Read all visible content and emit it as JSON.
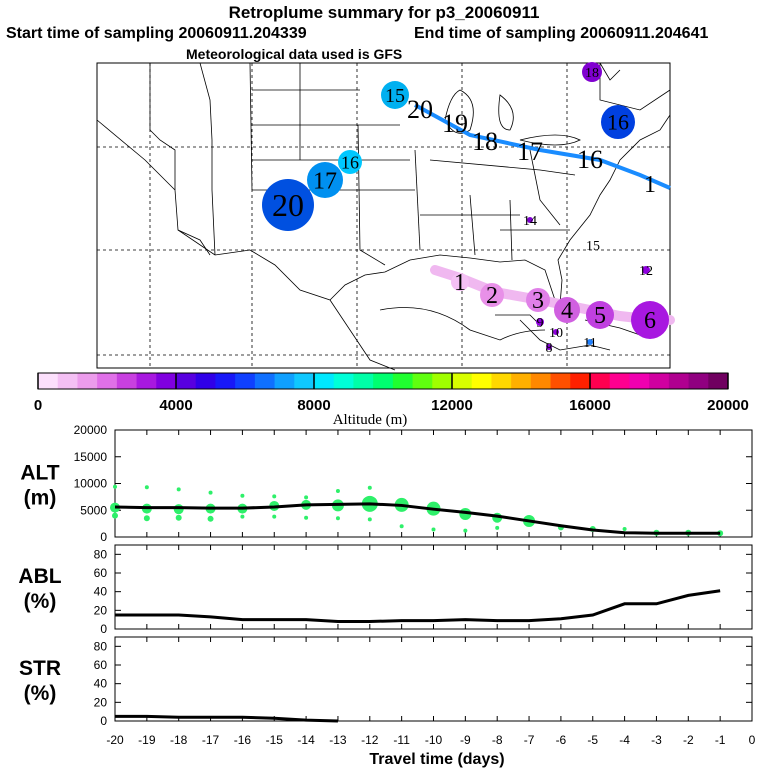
{
  "header": {
    "title": "Retroplume summary for p3_20060911",
    "start": "Start time of sampling 20060911.204339",
    "end": "End time of sampling 20060911.204641",
    "met": "Meteorological data used is GFS"
  },
  "map": {
    "high_track_labels": [
      "20",
      "19",
      "18",
      "17",
      "16",
      "1"
    ],
    "low_track_labels": [
      "1",
      "2",
      "3",
      "4",
      "5",
      "6"
    ],
    "scatter_labels": [
      {
        "label": "15",
        "color": "#00b0f0"
      },
      {
        "label": "16",
        "color": "#00c8ff"
      },
      {
        "label": "17",
        "color": "#0090f0"
      },
      {
        "label": "20",
        "color": "#0050e0"
      },
      {
        "label": "16",
        "color": "#0040e0"
      },
      {
        "label": "18",
        "color": "#8000d0"
      },
      {
        "label": "14",
        "color": "#8000d0"
      },
      {
        "label": "15",
        "color": "#8000d0"
      },
      {
        "label": "12",
        "color": "#9000e0"
      },
      {
        "label": "9",
        "color": "#9000e0"
      },
      {
        "label": "10",
        "color": "#9000e0"
      },
      {
        "label": "11",
        "color": "#2080ff"
      },
      {
        "label": "8",
        "color": "#8000d0"
      }
    ]
  },
  "colorbar": {
    "label": "Altitude (m)",
    "ticks": [
      "0",
      "4000",
      "8000",
      "12000",
      "16000",
      "20000"
    ],
    "colors": [
      "#fce0fc",
      "#f4c0f4",
      "#ec9cec",
      "#e070e8",
      "#c840e0",
      "#a818e0",
      "#8000e0",
      "#5800e0",
      "#3000e8",
      "#1818f8",
      "#1040ff",
      "#1070ff",
      "#10a0ff",
      "#10c8ff",
      "#00e8ff",
      "#00ffd8",
      "#00ffa8",
      "#00ff70",
      "#20ff30",
      "#60ff10",
      "#a0ff00",
      "#d8ff00",
      "#ffff00",
      "#ffd800",
      "#ffb000",
      "#ff8800",
      "#ff5000",
      "#ff2000",
      "#ff0050",
      "#ff0090",
      "#f000b0",
      "#d000a0",
      "#b00090",
      "#900080",
      "#700060"
    ]
  },
  "chart_data": [
    {
      "type": "line",
      "panel": "ALT",
      "ylabel": "ALT\n(m)",
      "ylabel_lines": [
        "ALT",
        "(m)"
      ],
      "ylim": [
        0,
        20000
      ],
      "yticks": [
        "0",
        "5000",
        "10000",
        "15000",
        "20000"
      ],
      "x": [
        -20,
        -19,
        -18,
        -17,
        -16,
        -15,
        -14,
        -13,
        -12,
        -11,
        -10,
        -9,
        -8,
        -7,
        -6,
        -5,
        -4,
        -3,
        -2,
        -1
      ],
      "values": [
        5600,
        5500,
        5500,
        5400,
        5400,
        5600,
        6000,
        6100,
        6200,
        5900,
        5200,
        4600,
        3900,
        3000,
        2100,
        1300,
        800,
        700,
        700,
        700
      ],
      "point_color": "#2ef06a",
      "scatter_points": [
        {
          "x": -20,
          "y": 5500,
          "r": 5
        },
        {
          "x": -20,
          "y": 9400,
          "r": 2
        },
        {
          "x": -20,
          "y": 4000,
          "r": 3
        },
        {
          "x": -19,
          "y": 5300,
          "r": 5
        },
        {
          "x": -19,
          "y": 9300,
          "r": 2
        },
        {
          "x": -19,
          "y": 3500,
          "r": 3
        },
        {
          "x": -18,
          "y": 5200,
          "r": 5
        },
        {
          "x": -18,
          "y": 8900,
          "r": 2
        },
        {
          "x": -18,
          "y": 3600,
          "r": 3
        },
        {
          "x": -17,
          "y": 5300,
          "r": 5
        },
        {
          "x": -17,
          "y": 8300,
          "r": 2
        },
        {
          "x": -17,
          "y": 3400,
          "r": 3
        },
        {
          "x": -16,
          "y": 5300,
          "r": 5
        },
        {
          "x": -16,
          "y": 7700,
          "r": 2
        },
        {
          "x": -16,
          "y": 3800,
          "r": 2
        },
        {
          "x": -15,
          "y": 5800,
          "r": 5
        },
        {
          "x": -15,
          "y": 7600,
          "r": 2
        },
        {
          "x": -15,
          "y": 3800,
          "r": 2
        },
        {
          "x": -14,
          "y": 6000,
          "r": 5
        },
        {
          "x": -14,
          "y": 7400,
          "r": 2
        },
        {
          "x": -14,
          "y": 3600,
          "r": 2
        },
        {
          "x": -13,
          "y": 5900,
          "r": 6
        },
        {
          "x": -13,
          "y": 8600,
          "r": 2
        },
        {
          "x": -13,
          "y": 3500,
          "r": 2
        },
        {
          "x": -12,
          "y": 6200,
          "r": 8
        },
        {
          "x": -12,
          "y": 9200,
          "r": 2
        },
        {
          "x": -12,
          "y": 3300,
          "r": 2
        },
        {
          "x": -11,
          "y": 6000,
          "r": 7
        },
        {
          "x": -11,
          "y": 2000,
          "r": 2
        },
        {
          "x": -10,
          "y": 5300,
          "r": 7
        },
        {
          "x": -10,
          "y": 1400,
          "r": 2
        },
        {
          "x": -9,
          "y": 4300,
          "r": 6
        },
        {
          "x": -9,
          "y": 1200,
          "r": 2
        },
        {
          "x": -8,
          "y": 3600,
          "r": 5
        },
        {
          "x": -8,
          "y": 1700,
          "r": 2
        },
        {
          "x": -7,
          "y": 3000,
          "r": 6
        },
        {
          "x": -6,
          "y": 1800,
          "r": 3
        },
        {
          "x": -5,
          "y": 1500,
          "r": 3
        },
        {
          "x": -4,
          "y": 1500,
          "r": 2
        },
        {
          "x": -3,
          "y": 800,
          "r": 3
        },
        {
          "x": -2,
          "y": 800,
          "r": 3
        },
        {
          "x": -1,
          "y": 700,
          "r": 3
        }
      ]
    },
    {
      "type": "line",
      "panel": "ABL",
      "ylabel": "ABL\n(%)",
      "ylabel_lines": [
        "ABL",
        "(%)"
      ],
      "ylim": [
        0,
        90
      ],
      "yticks": [
        "0",
        "20",
        "40",
        "60",
        "80"
      ],
      "x": [
        -20,
        -19,
        -18,
        -17,
        -16,
        -15,
        -14,
        -13,
        -12,
        -11,
        -10,
        -9,
        -8,
        -7,
        -6,
        -5,
        -4,
        -3,
        -2,
        -1
      ],
      "values": [
        15,
        15,
        15,
        13,
        10,
        10,
        10,
        8,
        8,
        9,
        9,
        10,
        9,
        9,
        11,
        15,
        27,
        27,
        36,
        41
      ]
    },
    {
      "type": "line",
      "panel": "STR",
      "ylabel": "STR\n(%)",
      "ylabel_lines": [
        "STR",
        "(%)"
      ],
      "ylim": [
        0,
        90
      ],
      "yticks": [
        "0",
        "20",
        "40",
        "60",
        "80"
      ],
      "x": [
        -20,
        -19,
        -18,
        -17,
        -16,
        -15,
        -14,
        -13
      ],
      "values": [
        5,
        5,
        4,
        4,
        4,
        3,
        1,
        0
      ]
    }
  ],
  "xaxis": {
    "label": "Travel time (days)",
    "ticks": [
      "-20",
      "-19",
      "-18",
      "-17",
      "-16",
      "-15",
      "-14",
      "-13",
      "-12",
      "-11",
      "-10",
      "-9",
      "-8",
      "-7",
      "-6",
      "-5",
      "-4",
      "-3",
      "-2",
      "-1",
      "0"
    ]
  }
}
